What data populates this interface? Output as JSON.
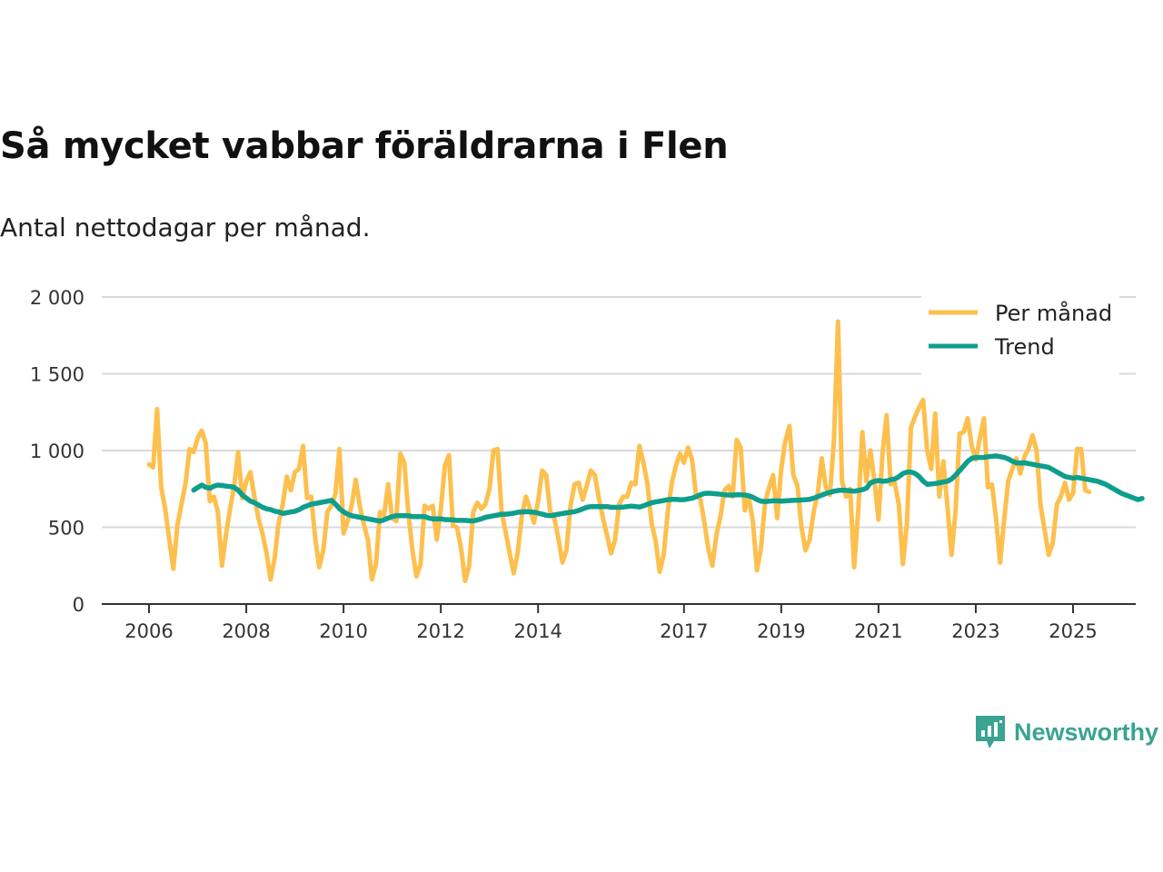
{
  "title": "Så mycket vabbar föräldrarna i Flen",
  "subtitle": "Antal nettodagar per månad.",
  "brand": {
    "name": "Newsworthy",
    "color": "#3aa391"
  },
  "colors": {
    "monthly": "#fdc04f",
    "trend": "#0e9e8c",
    "grid": "#d9d9d9",
    "axis": "#333333"
  },
  "chart_data": {
    "type": "line",
    "title": "Så mycket vabbar föräldrarna i Flen",
    "subtitle": "Antal nettodagar per månad.",
    "xlabel": "",
    "ylabel": "",
    "ylim": [
      0,
      2000
    ],
    "xlim": [
      2006,
      2025.5
    ],
    "yticks": [
      0,
      500,
      1000,
      1500,
      2000
    ],
    "ytick_labels": [
      "0",
      "500",
      "1 000",
      "1 500",
      "2 000"
    ],
    "xticks": [
      2006,
      2008,
      2010,
      2012,
      2014,
      2017,
      2019,
      2021,
      2023,
      2025
    ],
    "xtick_labels": [
      "2006",
      "2008",
      "2010",
      "2012",
      "2014",
      "2017",
      "2019",
      "2021",
      "2023",
      "2025"
    ],
    "grid": true,
    "legend": {
      "position": "top-right",
      "entries": [
        "Per månad",
        "Trend"
      ]
    },
    "series": [
      {
        "name": "Per månad",
        "color": "#fdc04f",
        "start": 2006.0,
        "step": 0.0833333,
        "values": [
          910,
          890,
          1270,
          760,
          620,
          420,
          230,
          510,
          650,
          780,
          1010,
          990,
          1080,
          1130,
          1050,
          670,
          700,
          600,
          250,
          450,
          620,
          770,
          990,
          690,
          800,
          860,
          700,
          560,
          460,
          330,
          160,
          300,
          530,
          650,
          830,
          740,
          860,
          880,
          1030,
          690,
          700,
          430,
          240,
          350,
          600,
          640,
          720,
          1010,
          460,
          540,
          640,
          810,
          640,
          520,
          420,
          160,
          260,
          600,
          580,
          780,
          560,
          540,
          980,
          920,
          590,
          350,
          180,
          260,
          640,
          620,
          640,
          420,
          620,
          900,
          970,
          510,
          500,
          360,
          150,
          250,
          600,
          660,
          620,
          650,
          750,
          1000,
          1010,
          600,
          470,
          330,
          200,
          340,
          580,
          700,
          620,
          530,
          670,
          870,
          840,
          600,
          560,
          430,
          270,
          350,
          640,
          780,
          790,
          680,
          770,
          870,
          840,
          690,
          560,
          450,
          330,
          420,
          650,
          700,
          700,
          790,
          780,
          1030,
          920,
          780,
          530,
          410,
          210,
          320,
          600,
          790,
          900,
          980,
          920,
          1020,
          940,
          700,
          690,
          540,
          360,
          250,
          450,
          570,
          740,
          770,
          700,
          1070,
          1020,
          610,
          690,
          540,
          220,
          360,
          660,
          760,
          840,
          560,
          880,
          1060,
          1160,
          840,
          770,
          500,
          350,
          420,
          600,
          720,
          950,
          760,
          710,
          1060,
          1840,
          800,
          700,
          750,
          240,
          610,
          1120,
          800,
          1000,
          800,
          550,
          990,
          1230,
          780,
          790,
          650,
          260,
          520,
          1150,
          1220,
          1280,
          1330,
          1000,
          880,
          1240,
          700,
          930,
          640,
          320,
          600,
          1110,
          1120,
          1210,
          1030,
          940,
          1080,
          1210,
          760,
          780,
          560,
          270,
          550,
          800,
          880,
          950,
          850,
          960,
          1010,
          1100,
          1000,
          640,
          480,
          320,
          400,
          650,
          700,
          790,
          680,
          720,
          1010,
          1010,
          740,
          730
        ]
      },
      {
        "name": "Trend",
        "color": "#0e9e8c",
        "start": 2006.92,
        "step": 0.0833333,
        "values": [
          742,
          760,
          775,
          760,
          755,
          768,
          775,
          772,
          768,
          765,
          760,
          740,
          710,
          690,
          670,
          660,
          645,
          630,
          620,
          615,
          605,
          600,
          590,
          595,
          600,
          605,
          615,
          630,
          640,
          650,
          655,
          660,
          665,
          670,
          675,
          650,
          620,
          600,
          585,
          575,
          570,
          565,
          560,
          555,
          550,
          545,
          540,
          550,
          560,
          570,
          575,
          575,
          575,
          575,
          570,
          570,
          570,
          570,
          560,
          555,
          555,
          555,
          550,
          550,
          548,
          545,
          545,
          545,
          542,
          542,
          548,
          555,
          565,
          570,
          575,
          580,
          585,
          585,
          588,
          592,
          598,
          600,
          602,
          600,
          598,
          592,
          585,
          578,
          575,
          580,
          585,
          590,
          594,
          598,
          602,
          610,
          620,
          630,
          635,
          635,
          635,
          635,
          635,
          630,
          630,
          630,
          632,
          635,
          638,
          635,
          632,
          640,
          650,
          660,
          665,
          670,
          675,
          680,
          682,
          682,
          680,
          680,
          685,
          690,
          700,
          712,
          720,
          722,
          720,
          718,
          715,
          712,
          710,
          710,
          712,
          712,
          710,
          705,
          695,
          680,
          670,
          668,
          670,
          672,
          672,
          670,
          672,
          674,
          676,
          676,
          678,
          680,
          682,
          690,
          700,
          710,
          720,
          728,
          735,
          740,
          742,
          740,
          738,
          735,
          740,
          745,
          755,
          790,
          800,
          805,
          800,
          802,
          810,
          815,
          830,
          850,
          860,
          860,
          850,
          830,
          800,
          780,
          782,
          785,
          790,
          795,
          800,
          815,
          840,
          870,
          900,
          930,
          950,
          955,
          955,
          955,
          960,
          962,
          965,
          960,
          955,
          945,
          930,
          920,
          918,
          920,
          915,
          910,
          905,
          900,
          895,
          890,
          875,
          860,
          845,
          830,
          825,
          820,
          825,
          820,
          815,
          810,
          805,
          800,
          790,
          780,
          765,
          750,
          735,
          720,
          710,
          700,
          690,
          680,
          688
        ]
      }
    ]
  }
}
